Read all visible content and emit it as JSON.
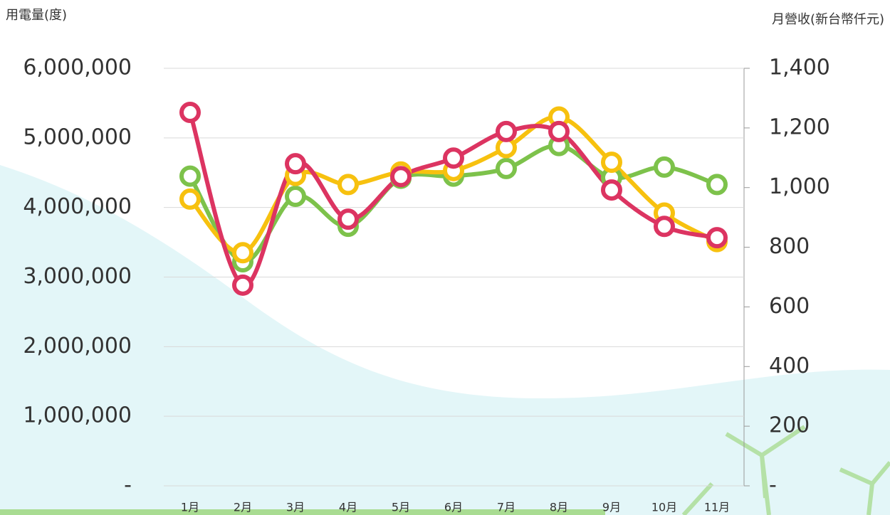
{
  "chart_data": {
    "type": "line",
    "y_label": "用電量(度)",
    "y2_label": "月營收(新台幣仟元)",
    "categories": [
      "1月",
      "2月",
      "3月",
      "4月",
      "5月",
      "6月",
      "7月",
      "8月",
      "9月",
      "10月",
      "11月"
    ],
    "series": [
      {
        "color": "#7dc24b",
        "values": [
          4450000,
          3220000,
          4160000,
          3730000,
          4420000,
          4450000,
          4560000,
          4890000,
          4430000,
          4580000,
          4330000
        ]
      },
      {
        "color": "#f7c10f",
        "values": [
          4120000,
          3350000,
          4460000,
          4330000,
          4510000,
          4530000,
          4860000,
          5300000,
          4650000,
          3920000,
          3510000
        ]
      },
      {
        "color": "#dc3461",
        "axis": "y2",
        "values": [
          1252,
          673,
          1080,
          894,
          1037,
          1099,
          1188,
          1188,
          992,
          870,
          832
        ]
      }
    ],
    "ylim": [
      0,
      6000000
    ],
    "yticks": [
      {
        "value": 0,
        "label": "-"
      },
      {
        "value": 1000000,
        "label": "1,000,000"
      },
      {
        "value": 2000000,
        "label": "2,000,000"
      },
      {
        "value": 3000000,
        "label": "3,000,000"
      },
      {
        "value": 4000000,
        "label": "4,000,000"
      },
      {
        "value": 5000000,
        "label": "5,000,000"
      },
      {
        "value": 6000000,
        "label": "6,000,000"
      }
    ],
    "y2lim": [
      0,
      1400
    ],
    "y2ticks": [
      {
        "value": 0,
        "label": "-"
      },
      200,
      400,
      600,
      800,
      {
        "value": 1000,
        "label": "1,000"
      },
      {
        "value": 1200,
        "label": "1,200"
      },
      {
        "value": 1400,
        "label": "1,400"
      }
    ],
    "grid": true
  }
}
